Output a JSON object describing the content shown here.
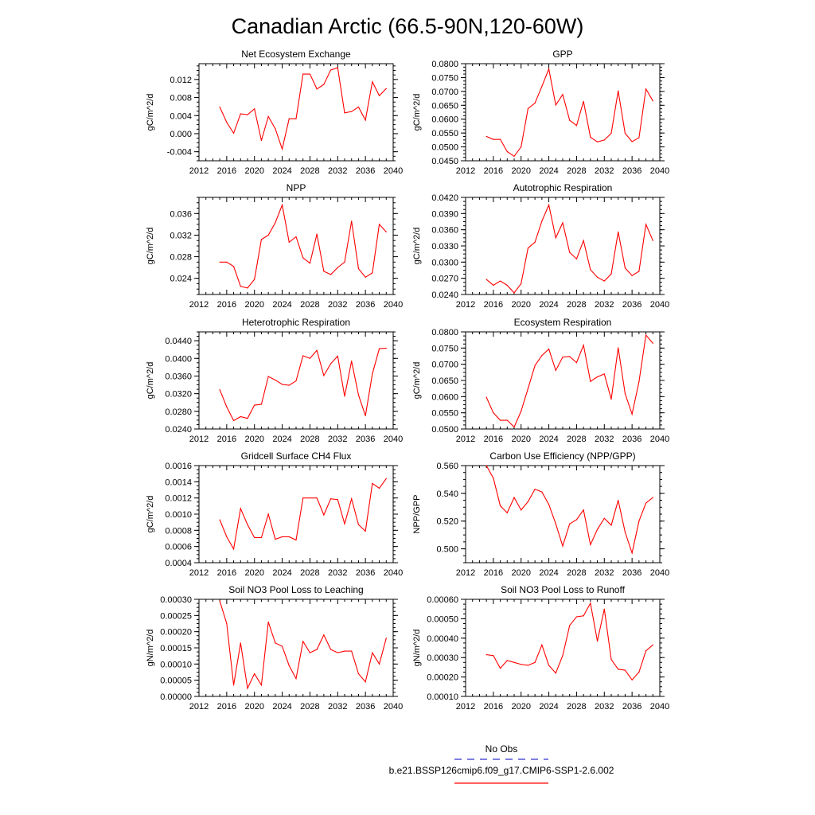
{
  "figure": {
    "title": "Canadian Arctic (66.5-90N,120-60W)"
  },
  "legend": {
    "obs_label": "No Obs",
    "obs_color": "#3333cc",
    "model_label": "b.e21.BSSP126cmip6.f09_g17.CMIP6-SSP1-2.6.002",
    "model_color": "#ff0000"
  },
  "chart_data": [
    {
      "type": "line",
      "title": "Net Ecosystem Exchange",
      "xlabel": "",
      "ylabel": "gC/m^2/d",
      "xlim": [
        2012,
        2040
      ],
      "xticks": [
        "2012",
        "2016",
        "2020",
        "2024",
        "2028",
        "2032",
        "2036",
        "2040"
      ],
      "ylim": [
        -0.006,
        0.0155
      ],
      "yticks": [
        "-0.004",
        "0.000",
        "0.004",
        "0.008",
        "0.012"
      ],
      "grid": false,
      "series": [
        {
          "color": "#ff0000",
          "x": [
            2015,
            2016,
            2017,
            2018,
            2019,
            2020,
            2021,
            2022,
            2023,
            2024,
            2025,
            2026,
            2027,
            2028,
            2029,
            2030,
            2031,
            2032,
            2033,
            2034,
            2035,
            2036,
            2037,
            2038,
            2039
          ],
          "y": [
            0.0059,
            0.0025,
            0.0001,
            0.0044,
            0.0042,
            0.0055,
            -0.0015,
            0.0038,
            0.0011,
            -0.0034,
            0.0033,
            0.0033,
            0.0132,
            0.0132,
            0.0099,
            0.0109,
            0.0141,
            0.0146,
            0.0046,
            0.0049,
            0.0059,
            0.003,
            0.0115,
            0.0084,
            0.01
          ]
        }
      ]
    },
    {
      "type": "line",
      "title": "GPP",
      "xlabel": "",
      "ylabel": "gC/m^2/d",
      "xlim": [
        2012,
        2040
      ],
      "xticks": [
        "2012",
        "2016",
        "2020",
        "2024",
        "2028",
        "2032",
        "2036",
        "2040"
      ],
      "ylim": [
        0.045,
        0.08
      ],
      "yticks": [
        "0.0450",
        "0.0500",
        "0.0550",
        "0.0600",
        "0.0650",
        "0.0700",
        "0.0750",
        "0.0800"
      ],
      "grid": false,
      "series": [
        {
          "color": "#ff0000",
          "x": [
            2015,
            2016,
            2017,
            2018,
            2019,
            2020,
            2021,
            2022,
            2023,
            2024,
            2025,
            2026,
            2027,
            2028,
            2029,
            2030,
            2031,
            2032,
            2033,
            2034,
            2035,
            2036,
            2037,
            2038,
            2039
          ],
          "y": [
            0.0538,
            0.0527,
            0.0527,
            0.0483,
            0.0466,
            0.05,
            0.0638,
            0.0658,
            0.0718,
            0.0781,
            0.0651,
            0.0689,
            0.0596,
            0.0577,
            0.0664,
            0.0535,
            0.0518,
            0.0525,
            0.0549,
            0.0702,
            0.0549,
            0.0519,
            0.0533,
            0.0709,
            0.0666
          ]
        }
      ]
    },
    {
      "type": "line",
      "title": "NPP",
      "xlabel": "",
      "ylabel": "gC/m^2/d",
      "xlim": [
        2012,
        2040
      ],
      "xticks": [
        "2012",
        "2016",
        "2020",
        "2024",
        "2028",
        "2032",
        "2036",
        "2040"
      ],
      "ylim": [
        0.021,
        0.039
      ],
      "yticks": [
        "0.024",
        "0.028",
        "0.032",
        "0.036"
      ],
      "grid": false,
      "series": [
        {
          "color": "#ff0000",
          "x": [
            2015,
            2016,
            2017,
            2018,
            2019,
            2020,
            2021,
            2022,
            2023,
            2024,
            2025,
            2026,
            2027,
            2028,
            2029,
            2030,
            2031,
            2032,
            2033,
            2034,
            2035,
            2036,
            2037,
            2038,
            2039
          ],
          "y": [
            0.027,
            0.027,
            0.0262,
            0.0225,
            0.0222,
            0.0238,
            0.0312,
            0.032,
            0.0343,
            0.0376,
            0.0307,
            0.0317,
            0.0278,
            0.0268,
            0.0322,
            0.0253,
            0.0247,
            0.026,
            0.027,
            0.0346,
            0.0258,
            0.0242,
            0.025,
            0.034,
            0.0326
          ]
        }
      ]
    },
    {
      "type": "line",
      "title": "Autotrophic Respiration",
      "xlabel": "",
      "ylabel": "gC/m^2/d",
      "xlim": [
        2012,
        2040
      ],
      "xticks": [
        "2012",
        "2016",
        "2020",
        "2024",
        "2028",
        "2032",
        "2036",
        "2040"
      ],
      "ylim": [
        0.024,
        0.042
      ],
      "yticks": [
        "0.0240",
        "0.0270",
        "0.0300",
        "0.0330",
        "0.0360",
        "0.0390",
        "0.0420"
      ],
      "grid": false,
      "series": [
        {
          "color": "#ff0000",
          "x": [
            2015,
            2016,
            2017,
            2018,
            2019,
            2020,
            2021,
            2022,
            2023,
            2024,
            2025,
            2026,
            2027,
            2028,
            2029,
            2030,
            2031,
            2032,
            2033,
            2034,
            2035,
            2036,
            2037,
            2038,
            2039
          ],
          "y": [
            0.0268,
            0.0257,
            0.0265,
            0.0257,
            0.0243,
            0.026,
            0.0326,
            0.0337,
            0.0376,
            0.0406,
            0.0345,
            0.0373,
            0.0318,
            0.0306,
            0.034,
            0.0286,
            0.0272,
            0.0265,
            0.0278,
            0.0356,
            0.0289,
            0.0275,
            0.0283,
            0.037,
            0.034
          ]
        }
      ]
    },
    {
      "type": "line",
      "title": "Heterotrophic Respiration",
      "xlabel": "",
      "ylabel": "gC/m^2/d",
      "xlim": [
        2012,
        2040
      ],
      "xticks": [
        "2012",
        "2016",
        "2020",
        "2024",
        "2028",
        "2032",
        "2036",
        "2040"
      ],
      "ylim": [
        0.024,
        0.046
      ],
      "yticks": [
        "0.0240",
        "0.0280",
        "0.0320",
        "0.0360",
        "0.0400",
        "0.0440"
      ],
      "grid": false,
      "series": [
        {
          "color": "#ff0000",
          "x": [
            2015,
            2016,
            2017,
            2018,
            2019,
            2020,
            2021,
            2022,
            2023,
            2024,
            2025,
            2026,
            2027,
            2028,
            2029,
            2030,
            2031,
            2032,
            2033,
            2034,
            2035,
            2036,
            2037,
            2038,
            2039
          ],
          "y": [
            0.0329,
            0.029,
            0.0259,
            0.0268,
            0.0264,
            0.0294,
            0.0296,
            0.0359,
            0.0351,
            0.0341,
            0.0339,
            0.0349,
            0.0406,
            0.04,
            0.0418,
            0.0361,
            0.0388,
            0.0405,
            0.0314,
            0.0394,
            0.0317,
            0.027,
            0.0365,
            0.0422,
            0.0423
          ]
        }
      ]
    },
    {
      "type": "line",
      "title": "Ecosystem Respiration",
      "xlabel": "",
      "ylabel": "gC/m^2/d",
      "xlim": [
        2012,
        2040
      ],
      "xticks": [
        "2012",
        "2016",
        "2020",
        "2024",
        "2028",
        "2032",
        "2036",
        "2040"
      ],
      "ylim": [
        0.05,
        0.08
      ],
      "yticks": [
        "0.0500",
        "0.0550",
        "0.0600",
        "0.0650",
        "0.0700",
        "0.0750",
        "0.0800"
      ],
      "grid": false,
      "series": [
        {
          "color": "#ff0000",
          "x": [
            2015,
            2016,
            2017,
            2018,
            2019,
            2020,
            2021,
            2022,
            2023,
            2024,
            2025,
            2026,
            2027,
            2028,
            2029,
            2030,
            2031,
            2032,
            2033,
            2034,
            2035,
            2036,
            2037,
            2038,
            2039
          ],
          "y": [
            0.0598,
            0.055,
            0.0527,
            0.0527,
            0.0506,
            0.0555,
            0.0625,
            0.0696,
            0.0727,
            0.0747,
            0.0681,
            0.0722,
            0.0724,
            0.0705,
            0.0759,
            0.0647,
            0.0661,
            0.067,
            0.0592,
            0.0751,
            0.0609,
            0.0546,
            0.0646,
            0.079,
            0.0765
          ]
        }
      ]
    },
    {
      "type": "line",
      "title": "Gridcell Surface CH4 Flux",
      "xlabel": "",
      "ylabel": "gC/m^2/d",
      "xlim": [
        2012,
        2040
      ],
      "xticks": [
        "2012",
        "2016",
        "2020",
        "2024",
        "2028",
        "2032",
        "2036",
        "2040"
      ],
      "ylim": [
        0.0004,
        0.0016
      ],
      "yticks": [
        "0.0004",
        "0.0006",
        "0.0008",
        "0.0010",
        "0.0012",
        "0.0014",
        "0.0016"
      ],
      "grid": false,
      "series": [
        {
          "color": "#ff0000",
          "x": [
            2015,
            2016,
            2017,
            2018,
            2019,
            2020,
            2021,
            2022,
            2023,
            2024,
            2025,
            2026,
            2027,
            2028,
            2029,
            2030,
            2031,
            2032,
            2033,
            2034,
            2035,
            2036,
            2037,
            2038,
            2039
          ],
          "y": [
            0.00093,
            0.00072,
            0.00057,
            0.00107,
            0.00087,
            0.00071,
            0.00071,
            0.001,
            0.00069,
            0.00072,
            0.00072,
            0.00068,
            0.0012,
            0.0012,
            0.0012,
            0.00099,
            0.00119,
            0.00118,
            0.00088,
            0.00119,
            0.00087,
            0.00079,
            0.00138,
            0.00132,
            0.00144
          ]
        }
      ]
    },
    {
      "type": "line",
      "title": "Carbon Use Efficiency (NPP/GPP)",
      "xlabel": "",
      "ylabel": "NPP/GPP",
      "xlim": [
        2012,
        2040
      ],
      "xticks": [
        "2012",
        "2016",
        "2020",
        "2024",
        "2028",
        "2032",
        "2036",
        "2040"
      ],
      "ylim": [
        0.49,
        0.56
      ],
      "yticks": [
        "0.500",
        "0.520",
        "0.540",
        "0.560"
      ],
      "grid": false,
      "series": [
        {
          "color": "#ff0000",
          "x": [
            2015,
            2016,
            2017,
            2018,
            2019,
            2020,
            2021,
            2022,
            2023,
            2024,
            2025,
            2026,
            2027,
            2028,
            2029,
            2030,
            2031,
            2032,
            2033,
            2034,
            2035,
            2036,
            2037,
            2038,
            2039
          ],
          "y": [
            0.56,
            0.551,
            0.531,
            0.526,
            0.537,
            0.528,
            0.534,
            0.543,
            0.541,
            0.532,
            0.518,
            0.502,
            0.518,
            0.521,
            0.528,
            0.503,
            0.514,
            0.522,
            0.517,
            0.535,
            0.512,
            0.497,
            0.52,
            0.533,
            0.537
          ]
        }
      ]
    },
    {
      "type": "line",
      "title": "Soil NO3 Pool Loss to Leaching",
      "xlabel": "",
      "ylabel": "gN/m^2/d",
      "xlim": [
        2012,
        2040
      ],
      "xticks": [
        "2012",
        "2016",
        "2020",
        "2024",
        "2028",
        "2032",
        "2036",
        "2040"
      ],
      "ylim": [
        0.0,
        0.0003
      ],
      "yticks": [
        "0.00000",
        "0.00005",
        "0.00010",
        "0.00015",
        "0.00020",
        "0.00025",
        "0.00030"
      ],
      "grid": false,
      "series": [
        {
          "color": "#ff0000",
          "x": [
            2015,
            2016,
            2017,
            2018,
            2019,
            2020,
            2021,
            2022,
            2023,
            2024,
            2025,
            2026,
            2027,
            2028,
            2029,
            2030,
            2031,
            2032,
            2033,
            2034,
            2035,
            2036,
            2037,
            2038,
            2039
          ],
          "y": [
            0.000295,
            0.000225,
            3.5e-05,
            0.000165,
            2.5e-05,
            7e-05,
            3.5e-05,
            0.00023,
            0.000165,
            0.000155,
            9.5e-05,
            5.5e-05,
            0.00017,
            0.000135,
            0.000145,
            0.00019,
            0.000145,
            0.000135,
            0.00014,
            0.00014,
            7e-05,
            4.5e-05,
            0.000135,
            0.0001,
            0.00018
          ]
        }
      ]
    },
    {
      "type": "line",
      "title": "Soil NO3 Pool Loss to Runoff",
      "xlabel": "",
      "ylabel": "gN/m^2/d",
      "xlim": [
        2012,
        2040
      ],
      "xticks": [
        "2012",
        "2016",
        "2020",
        "2024",
        "2028",
        "2032",
        "2036",
        "2040"
      ],
      "ylim": [
        0.0001,
        0.0006
      ],
      "yticks": [
        "0.00010",
        "0.00020",
        "0.00030",
        "0.00040",
        "0.00050",
        "0.00060"
      ],
      "grid": false,
      "series": [
        {
          "color": "#ff0000",
          "x": [
            2015,
            2016,
            2017,
            2018,
            2019,
            2020,
            2021,
            2022,
            2023,
            2024,
            2025,
            2026,
            2027,
            2028,
            2029,
            2030,
            2031,
            2032,
            2033,
            2034,
            2035,
            2036,
            2037,
            2038,
            2039
          ],
          "y": [
            0.000315,
            0.00031,
            0.000245,
            0.000285,
            0.000275,
            0.000265,
            0.00026,
            0.000275,
            0.000365,
            0.00026,
            0.00022,
            0.00031,
            0.000465,
            0.00051,
            0.000515,
            0.00058,
            0.000385,
            0.00055,
            0.00029,
            0.00024,
            0.000235,
            0.000185,
            0.000225,
            0.000335,
            0.000365
          ]
        }
      ]
    }
  ]
}
